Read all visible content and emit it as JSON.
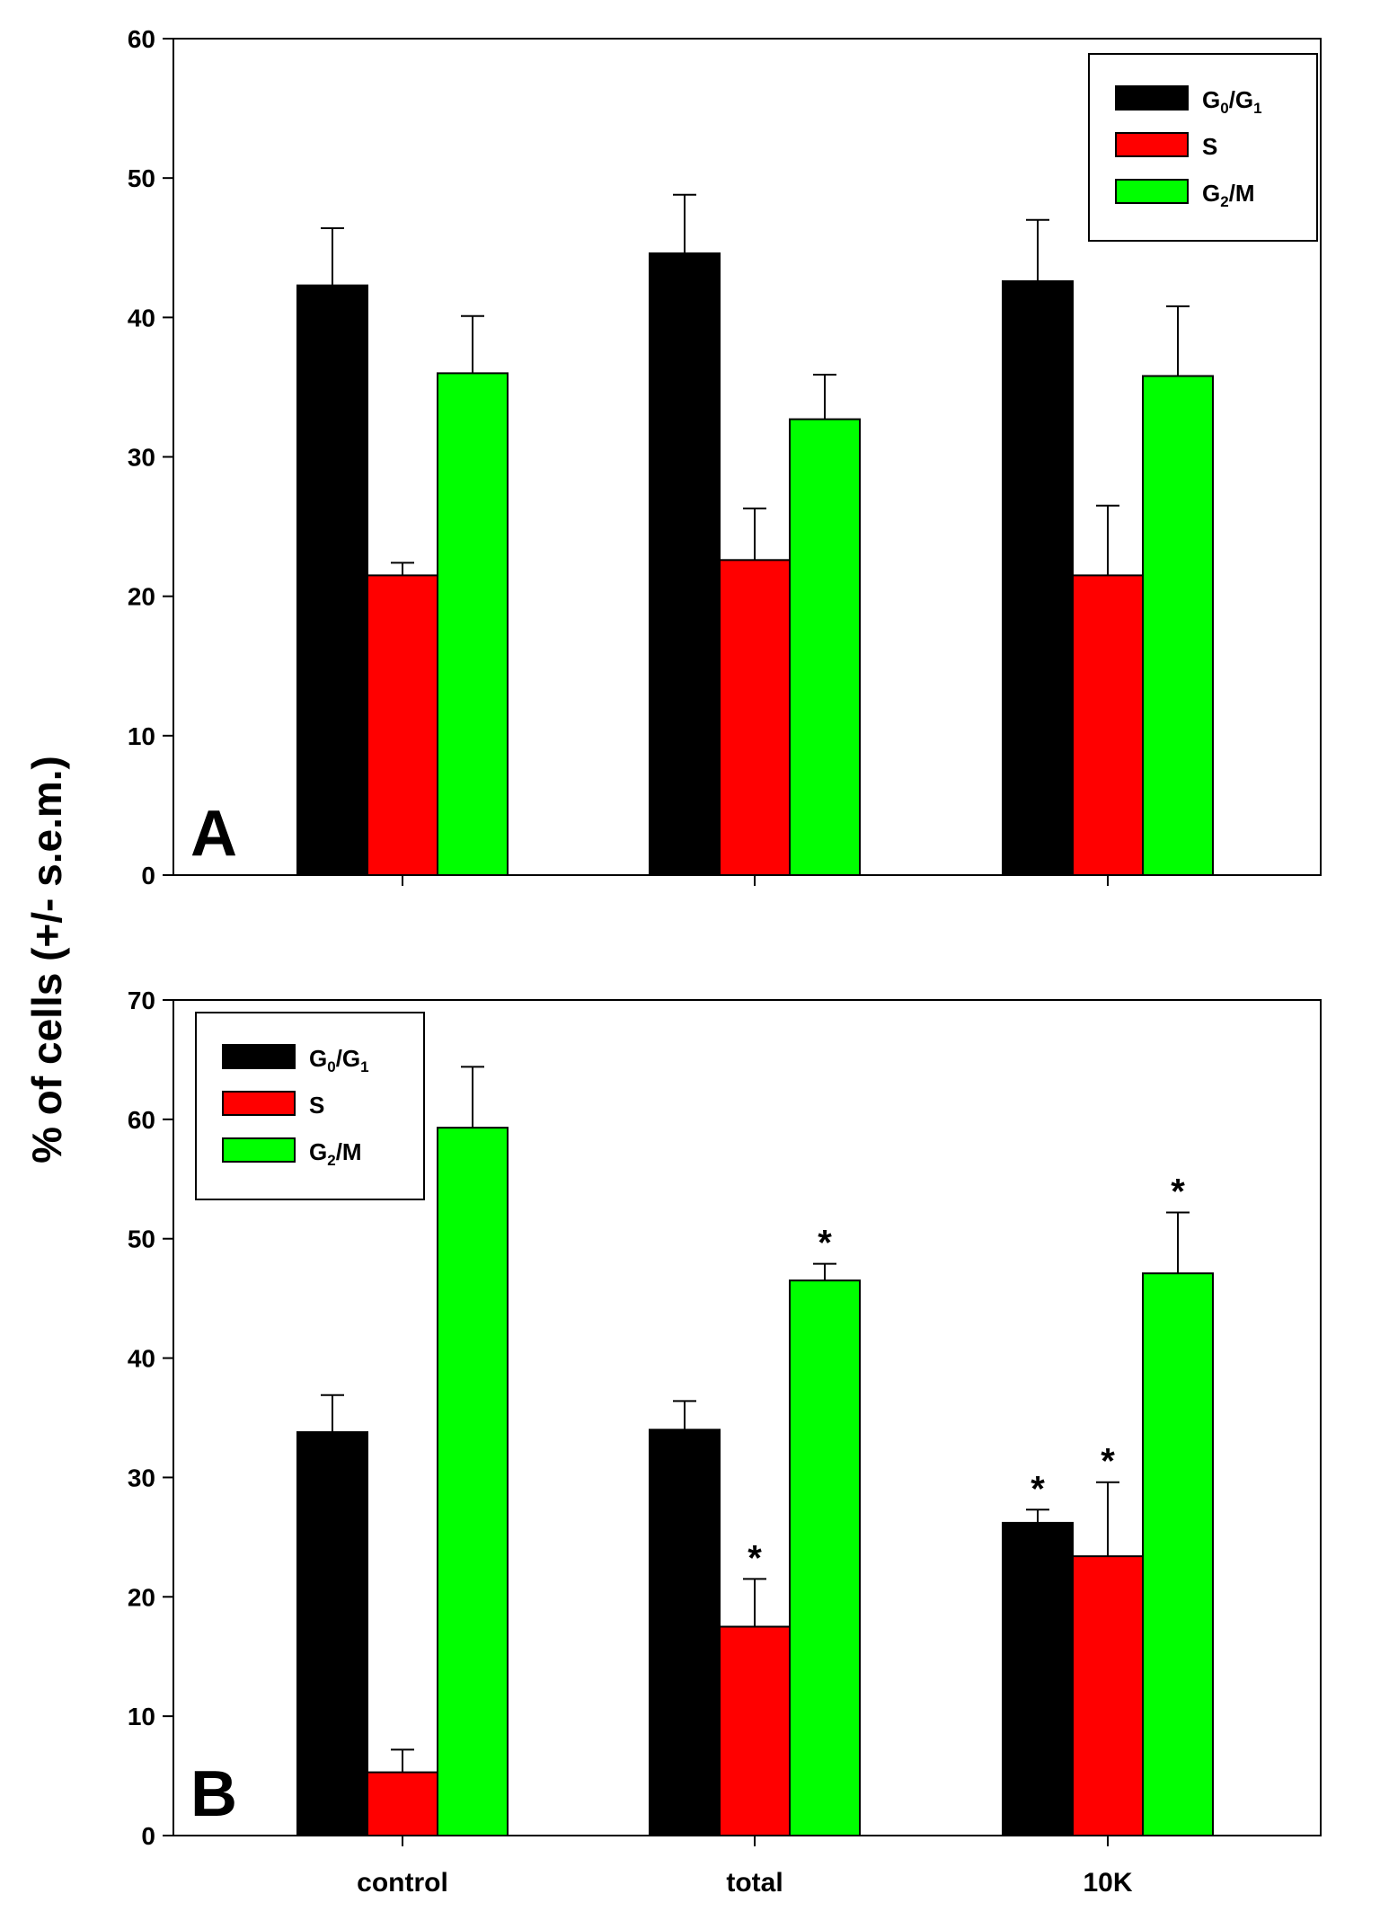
{
  "figure": {
    "ylabel": "% of cells (+/- s.e.m.)"
  },
  "colors": {
    "G0/G1": "#000000",
    "S": "#ff0000",
    "G2/M": "#00ff00"
  },
  "legend": [
    {
      "key": "G0/G1",
      "main": "G",
      "sub1": "0",
      "sep": "/G",
      "sub2": "1"
    },
    {
      "key": "S",
      "main": "S",
      "sub1": "",
      "sep": "",
      "sub2": ""
    },
    {
      "key": "G2/M",
      "main": "G",
      "sub1": "2",
      "sep": "/M",
      "sub2": ""
    }
  ],
  "chart_data": [
    {
      "type": "bar",
      "panel": "A",
      "categories": [
        "control",
        "total",
        "10K"
      ],
      "show_category_labels": false,
      "ylim": [
        0,
        60
      ],
      "yticks": [
        0,
        10,
        20,
        30,
        40,
        50,
        60
      ],
      "legend_position": "top-right",
      "series": [
        {
          "name": "G0/G1",
          "values": [
            42.3,
            44.6,
            42.6
          ],
          "errors": [
            4.1,
            4.2,
            4.4
          ],
          "significant": [
            false,
            false,
            false
          ]
        },
        {
          "name": "S",
          "values": [
            21.5,
            22.6,
            21.5
          ],
          "errors": [
            0.9,
            3.7,
            5.0
          ],
          "significant": [
            false,
            false,
            false
          ]
        },
        {
          "name": "G2/M",
          "values": [
            36.0,
            32.7,
            35.8
          ],
          "errors": [
            4.1,
            3.2,
            5.0
          ],
          "significant": [
            false,
            false,
            false
          ]
        }
      ]
    },
    {
      "type": "bar",
      "panel": "B",
      "categories": [
        "control",
        "total",
        "10K"
      ],
      "show_category_labels": true,
      "ylim": [
        0,
        70
      ],
      "yticks": [
        0,
        10,
        20,
        30,
        40,
        50,
        60,
        70
      ],
      "legend_position": "top-left",
      "significance_marker": "*",
      "series": [
        {
          "name": "G0/G1",
          "values": [
            33.8,
            34.0,
            26.2
          ],
          "errors": [
            3.1,
            2.4,
            1.1
          ],
          "significant": [
            false,
            false,
            true
          ]
        },
        {
          "name": "S",
          "values": [
            5.3,
            17.5,
            23.4
          ],
          "errors": [
            1.9,
            4.0,
            6.2
          ],
          "significant": [
            false,
            true,
            true
          ]
        },
        {
          "name": "G2/M",
          "values": [
            59.3,
            46.5,
            47.1
          ],
          "errors": [
            5.1,
            1.4,
            5.1
          ],
          "significant": [
            false,
            true,
            true
          ]
        }
      ]
    }
  ]
}
